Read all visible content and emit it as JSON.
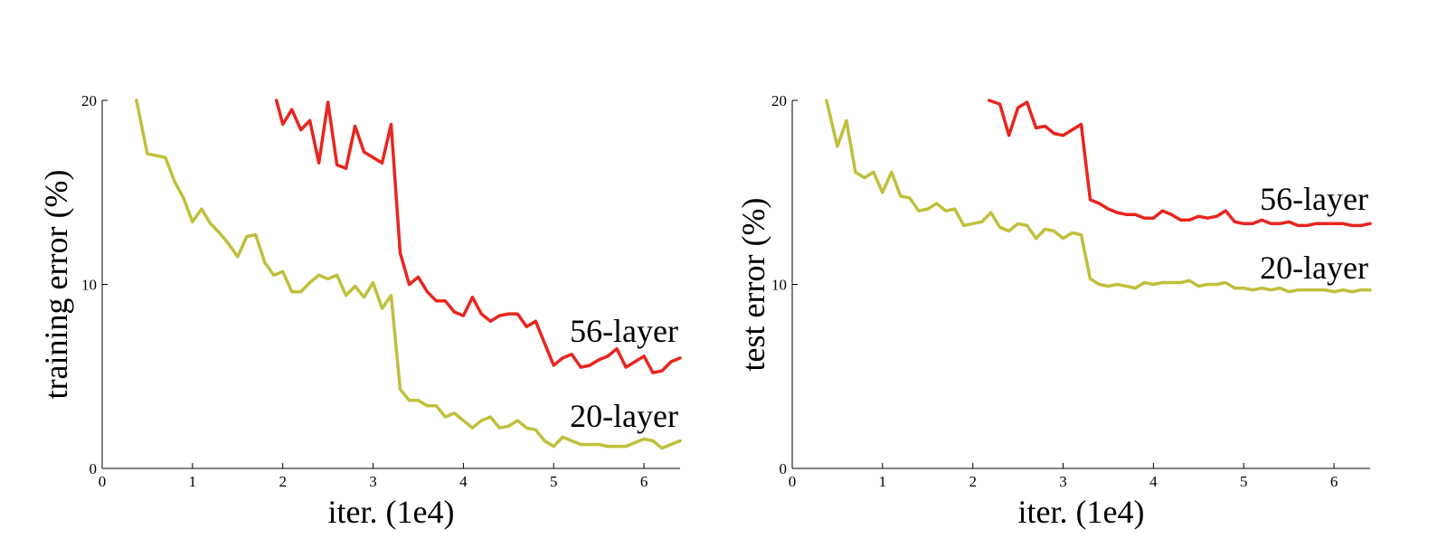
{
  "chart_data": [
    {
      "type": "line",
      "xlabel": "iter. (1e4)",
      "ylabel": "training error (%)",
      "xlim": [
        0,
        6.4
      ],
      "ylim": [
        0,
        20
      ],
      "xticks": [
        "0",
        "1",
        "2",
        "3",
        "4",
        "5",
        "6"
      ],
      "yticks": [
        "0",
        "10",
        "20"
      ],
      "grid": false,
      "series": [
        {
          "name": "56-layer",
          "color": "#e8251f",
          "x": [
            1.93,
            2.0,
            2.1,
            2.2,
            2.3,
            2.4,
            2.5,
            2.6,
            2.7,
            2.8,
            2.9,
            3.0,
            3.1,
            3.2,
            3.3,
            3.4,
            3.5,
            3.6,
            3.7,
            3.8,
            3.9,
            4.0,
            4.1,
            4.2,
            4.3,
            4.4,
            4.5,
            4.6,
            4.7,
            4.8,
            4.9,
            5.0,
            5.1,
            5.2,
            5.3,
            5.4,
            5.5,
            5.6,
            5.7,
            5.8,
            5.9,
            6.0,
            6.1,
            6.2,
            6.3,
            6.4
          ],
          "y": [
            20.0,
            18.7,
            19.5,
            18.4,
            18.9,
            16.6,
            19.9,
            16.5,
            16.3,
            18.6,
            17.2,
            16.9,
            16.6,
            18.7,
            11.7,
            10.0,
            10.4,
            9.6,
            9.1,
            9.1,
            8.5,
            8.3,
            9.3,
            8.4,
            8.0,
            8.3,
            8.4,
            8.4,
            7.7,
            8.0,
            6.8,
            5.6,
            6.0,
            6.2,
            5.5,
            5.6,
            5.9,
            6.1,
            6.5,
            5.5,
            5.8,
            6.1,
            5.2,
            5.3,
            5.8,
            6.0
          ]
        },
        {
          "name": "20-layer",
          "color": "#bfc03c",
          "x": [
            0.38,
            0.5,
            0.6,
            0.7,
            0.8,
            0.9,
            1.0,
            1.1,
            1.2,
            1.3,
            1.4,
            1.5,
            1.6,
            1.7,
            1.8,
            1.9,
            2.0,
            2.1,
            2.2,
            2.3,
            2.4,
            2.5,
            2.6,
            2.7,
            2.8,
            2.9,
            3.0,
            3.1,
            3.2,
            3.3,
            3.4,
            3.5,
            3.6,
            3.7,
            3.8,
            3.9,
            4.0,
            4.1,
            4.2,
            4.3,
            4.4,
            4.5,
            4.6,
            4.7,
            4.8,
            4.9,
            5.0,
            5.1,
            5.2,
            5.3,
            5.4,
            5.5,
            5.6,
            5.7,
            5.8,
            5.9,
            6.0,
            6.1,
            6.2,
            6.3,
            6.4
          ],
          "y": [
            20.0,
            17.1,
            17.0,
            16.9,
            15.6,
            14.7,
            13.4,
            14.1,
            13.3,
            12.8,
            12.2,
            11.5,
            12.6,
            12.7,
            11.2,
            10.5,
            10.7,
            9.6,
            9.6,
            10.1,
            10.5,
            10.3,
            10.5,
            9.4,
            9.9,
            9.3,
            10.1,
            8.7,
            9.4,
            4.3,
            3.7,
            3.7,
            3.4,
            3.4,
            2.8,
            3.0,
            2.6,
            2.2,
            2.6,
            2.8,
            2.2,
            2.3,
            2.6,
            2.2,
            2.1,
            1.5,
            1.2,
            1.7,
            1.5,
            1.3,
            1.3,
            1.3,
            1.2,
            1.2,
            1.2,
            1.4,
            1.6,
            1.5,
            1.1,
            1.3,
            1.5
          ]
        }
      ]
    },
    {
      "type": "line",
      "xlabel": "iter. (1e4)",
      "ylabel": "test error (%)",
      "xlim": [
        0,
        6.4
      ],
      "ylim": [
        0,
        20
      ],
      "xticks": [
        "0",
        "1",
        "2",
        "3",
        "4",
        "5",
        "6"
      ],
      "yticks": [
        "0",
        "10",
        "20"
      ],
      "grid": false,
      "series": [
        {
          "name": "56-layer",
          "color": "#e8251f",
          "x": [
            2.18,
            2.3,
            2.4,
            2.5,
            2.6,
            2.7,
            2.8,
            2.9,
            3.0,
            3.1,
            3.2,
            3.3,
            3.4,
            3.5,
            3.6,
            3.7,
            3.8,
            3.9,
            4.0,
            4.1,
            4.2,
            4.3,
            4.4,
            4.5,
            4.6,
            4.7,
            4.8,
            4.9,
            5.0,
            5.1,
            5.2,
            5.3,
            5.4,
            5.5,
            5.6,
            5.7,
            5.8,
            5.9,
            6.0,
            6.1,
            6.2,
            6.3,
            6.4
          ],
          "y": [
            20.0,
            19.8,
            18.1,
            19.6,
            19.9,
            18.5,
            18.6,
            18.2,
            18.1,
            18.4,
            18.7,
            14.6,
            14.4,
            14.1,
            13.9,
            13.8,
            13.8,
            13.6,
            13.6,
            14.0,
            13.8,
            13.5,
            13.5,
            13.7,
            13.6,
            13.7,
            14.0,
            13.4,
            13.3,
            13.3,
            13.5,
            13.3,
            13.3,
            13.4,
            13.2,
            13.2,
            13.3,
            13.3,
            13.3,
            13.3,
            13.2,
            13.2,
            13.3
          ]
        },
        {
          "name": "20-layer",
          "color": "#bfc03c",
          "x": [
            0.38,
            0.5,
            0.6,
            0.7,
            0.8,
            0.9,
            1.0,
            1.1,
            1.2,
            1.3,
            1.4,
            1.5,
            1.6,
            1.7,
            1.8,
            1.9,
            2.0,
            2.1,
            2.2,
            2.3,
            2.4,
            2.5,
            2.6,
            2.7,
            2.8,
            2.9,
            3.0,
            3.1,
            3.2,
            3.3,
            3.4,
            3.5,
            3.6,
            3.7,
            3.8,
            3.9,
            4.0,
            4.1,
            4.2,
            4.3,
            4.4,
            4.5,
            4.6,
            4.7,
            4.8,
            4.9,
            5.0,
            5.1,
            5.2,
            5.3,
            5.4,
            5.5,
            5.6,
            5.7,
            5.8,
            5.9,
            6.0,
            6.1,
            6.2,
            6.3,
            6.4
          ],
          "y": [
            20.0,
            17.5,
            18.9,
            16.1,
            15.8,
            16.1,
            15.0,
            16.1,
            14.8,
            14.7,
            14.0,
            14.1,
            14.4,
            14.0,
            14.1,
            13.2,
            13.3,
            13.4,
            13.9,
            13.1,
            12.9,
            13.3,
            13.2,
            12.5,
            13.0,
            12.9,
            12.5,
            12.8,
            12.7,
            10.3,
            10.0,
            9.9,
            10.0,
            9.9,
            9.8,
            10.1,
            10.0,
            10.1,
            10.1,
            10.1,
            10.2,
            9.9,
            10.0,
            10.0,
            10.1,
            9.8,
            9.8,
            9.7,
            9.8,
            9.7,
            9.8,
            9.6,
            9.7,
            9.7,
            9.7,
            9.7,
            9.6,
            9.7,
            9.6,
            9.7,
            9.7
          ]
        }
      ]
    }
  ]
}
